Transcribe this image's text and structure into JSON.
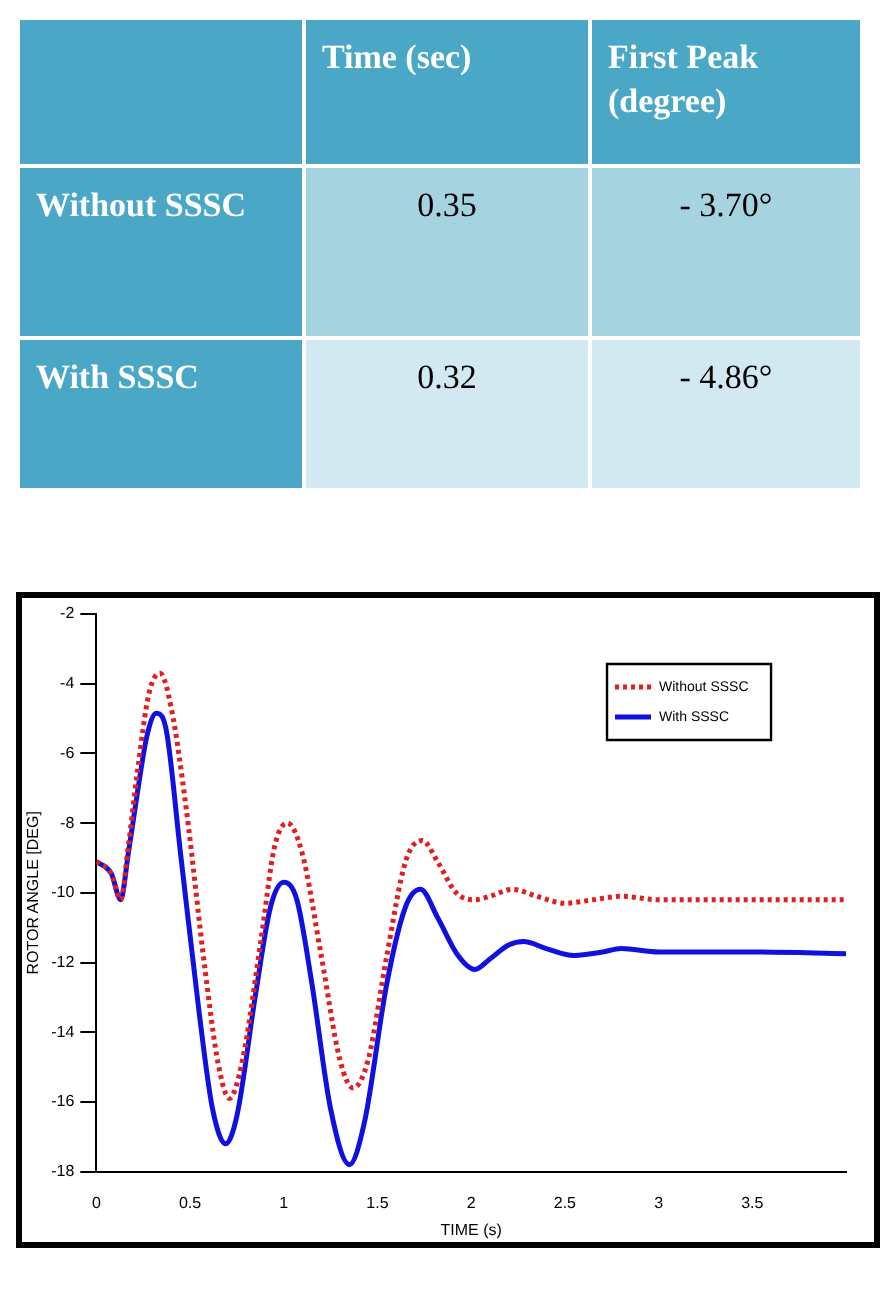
{
  "chart_data": {
    "type": "line",
    "xlabel": "TIME (s)",
    "ylabel": "ROTOR ANGLE [DEG]",
    "annotations": [
      "Time (sec)",
      "First Peak (degree)",
      "Without SSSC",
      "0.35",
      "- 3.70°",
      "With SSSC",
      "0.32",
      "- 4.86°"
    ],
    "xlim": [
      0,
      4
    ],
    "xticks": [
      0,
      0.5,
      1,
      1.5,
      2,
      2.5,
      3,
      3.5
    ],
    "ylim": [
      -18,
      -2
    ],
    "yticks": [
      -18,
      -16,
      -14,
      -12,
      -10,
      -8,
      -6,
      -4,
      -2
    ],
    "grid": false,
    "legend": "top right",
    "marker": "none",
    "series": [
      {
        "name": "Without SSSC",
        "color": "#e02020",
        "line_style": "dotted",
        "x": [
          0,
          0.08,
          0.13,
          0.17,
          0.22,
          0.28,
          0.34,
          0.4,
          0.48,
          0.58,
          0.65,
          0.71,
          0.78,
          0.88,
          0.95,
          1.02,
          1.1,
          1.2,
          1.3,
          1.37,
          1.45,
          1.55,
          1.65,
          1.74,
          1.82,
          1.92,
          2.02,
          2.1,
          2.22,
          2.35,
          2.5,
          2.65,
          2.8,
          3,
          3.5,
          4
        ],
        "values": [
          -9.1,
          -9.45,
          -10.2,
          -8.7,
          -6.5,
          -4.3,
          -3.7,
          -4.7,
          -7.6,
          -12.2,
          -14.9,
          -15.9,
          -14.8,
          -11.3,
          -8.7,
          -8,
          -8.9,
          -11.8,
          -14.8,
          -15.6,
          -14.8,
          -11.8,
          -9.1,
          -8.5,
          -9.1,
          -10,
          -10.2,
          -10.1,
          -9.9,
          -10.1,
          -10.3,
          -10.2,
          -10.1,
          -10.2,
          -10.2,
          -10.2
        ]
      },
      {
        "name": "With SSSC",
        "color": "#1010e0",
        "line_style": "solid",
        "x": [
          0,
          0.08,
          0.13,
          0.17,
          0.22,
          0.27,
          0.32,
          0.37,
          0.45,
          0.55,
          0.62,
          0.69,
          0.75,
          0.85,
          0.93,
          1,
          1.07,
          1.15,
          1.25,
          1.35,
          1.43,
          1.55,
          1.65,
          1.73,
          1.82,
          1.93,
          2.02,
          2.1,
          2.2,
          2.28,
          2.4,
          2.55,
          2.7,
          2.8,
          3,
          3.5,
          4
        ],
        "values": [
          -9.1,
          -9.45,
          -10.2,
          -8.9,
          -7.1,
          -5.5,
          -4.85,
          -5.25,
          -8.9,
          -13.5,
          -16.2,
          -17.2,
          -16.4,
          -12.9,
          -10.4,
          -9.7,
          -10.2,
          -12.6,
          -16.2,
          -17.8,
          -16.6,
          -12.6,
          -10.4,
          -9.9,
          -10.7,
          -11.8,
          -12.2,
          -11.9,
          -11.5,
          -11.4,
          -11.6,
          -11.8,
          -11.7,
          -11.6,
          -11.7,
          -11.7,
          -11.75
        ]
      }
    ]
  }
}
